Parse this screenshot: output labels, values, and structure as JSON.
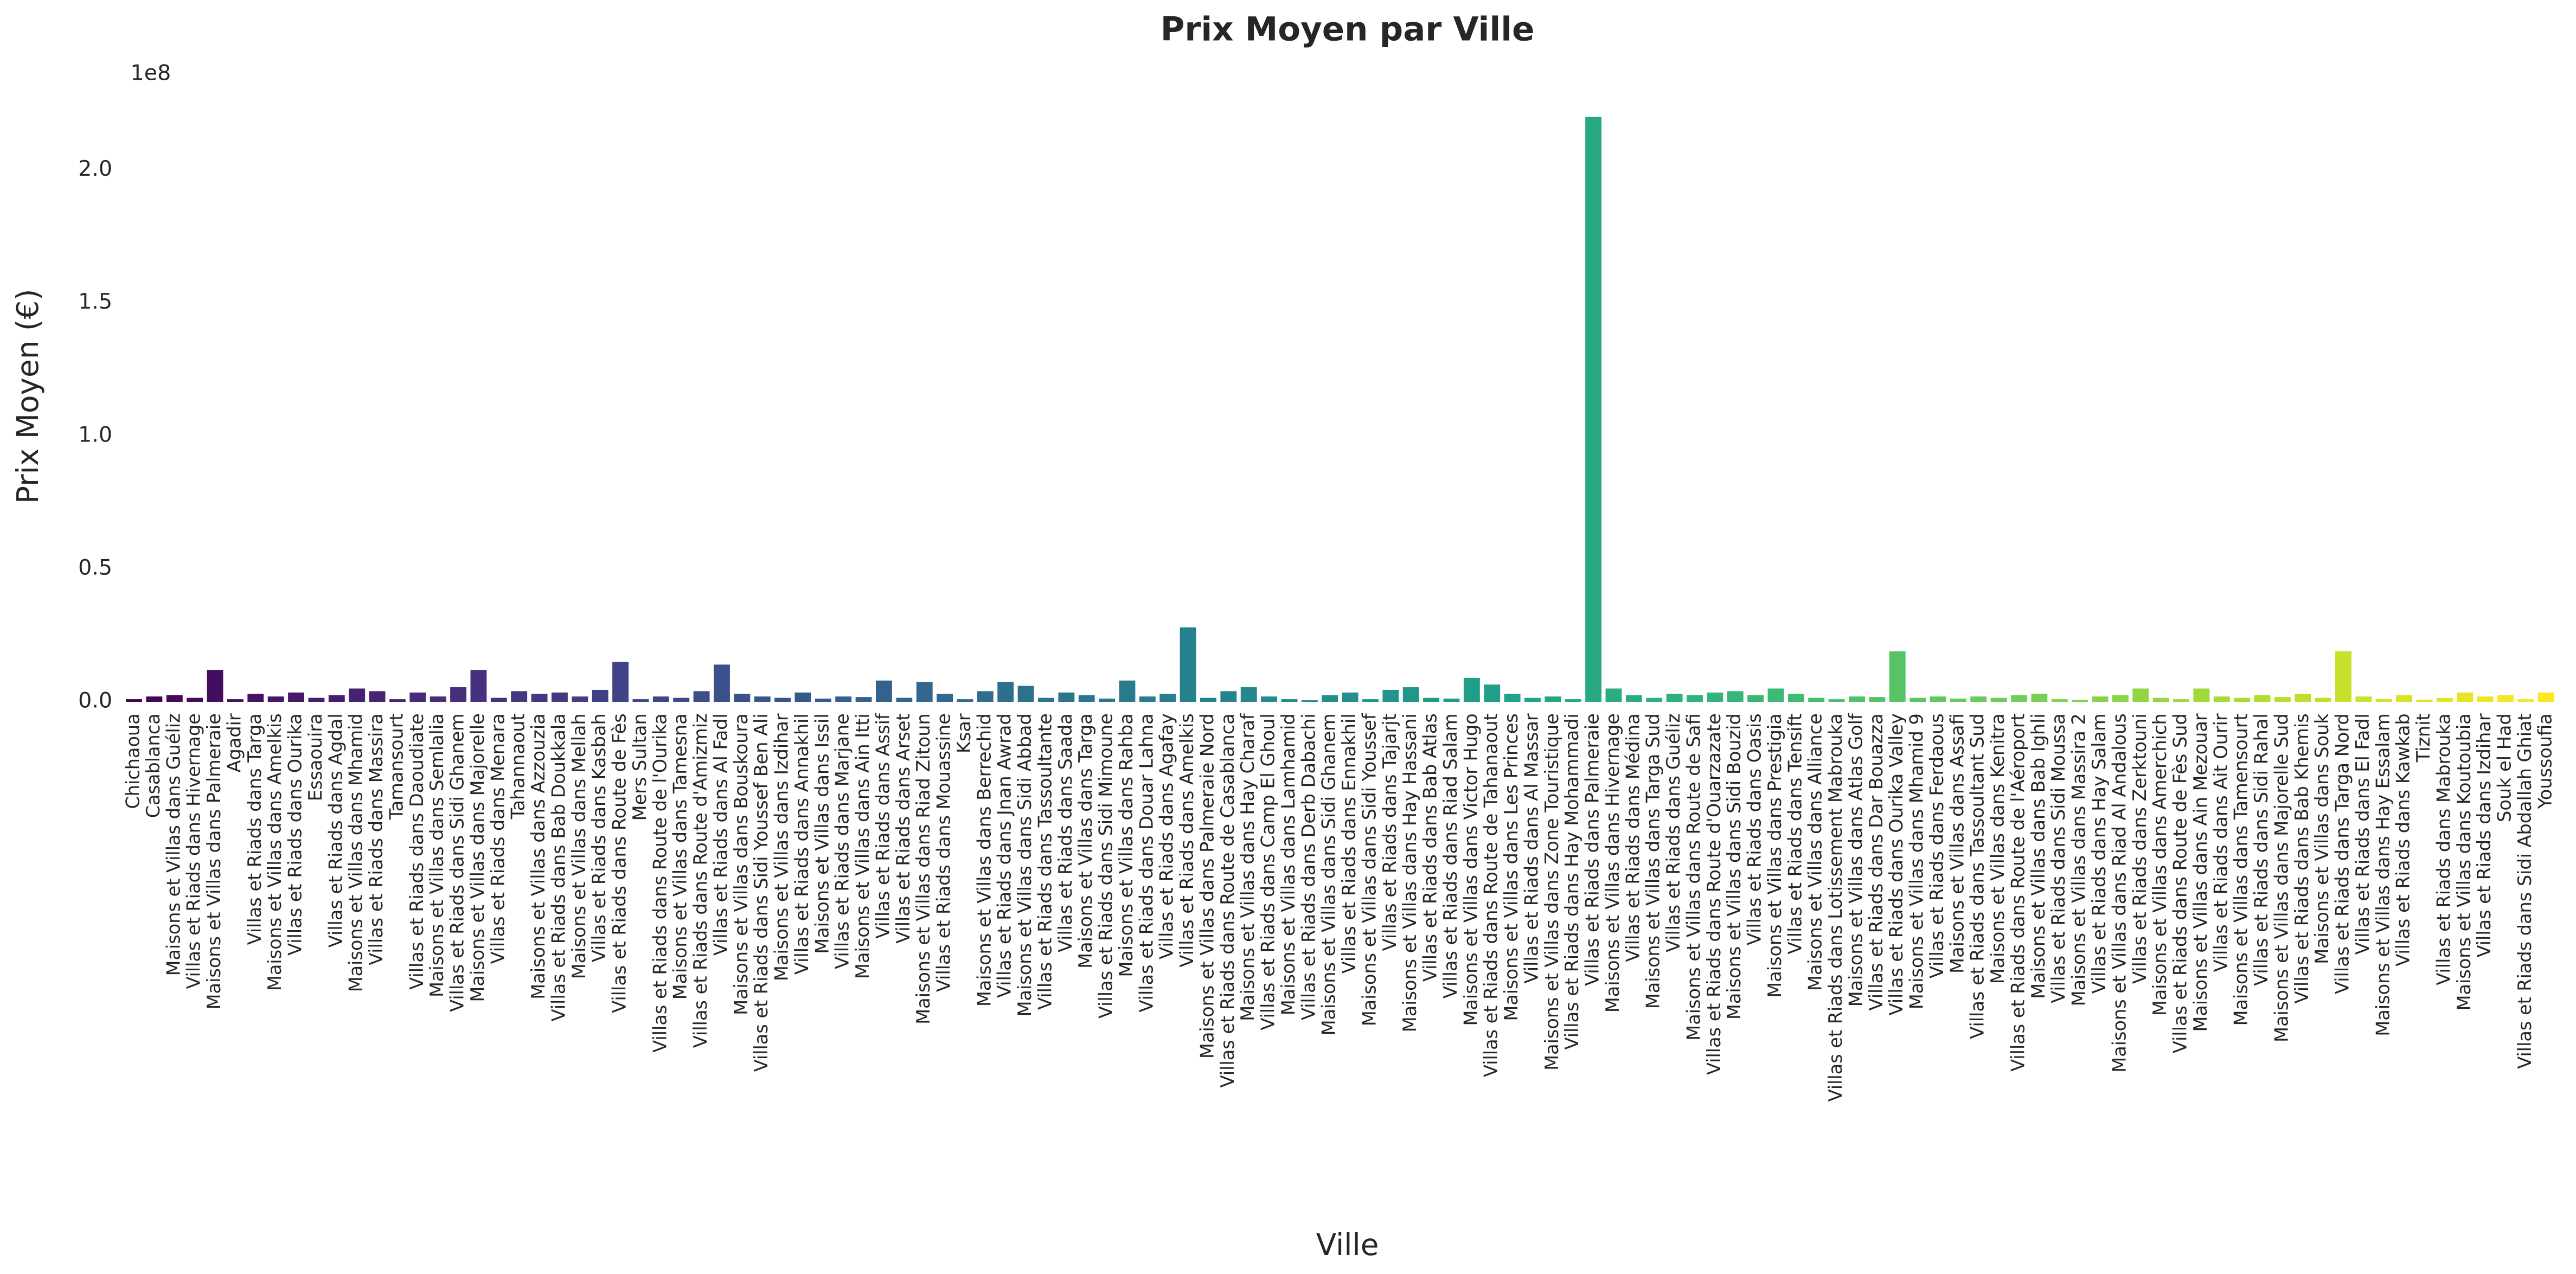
{
  "chart_data": {
    "type": "bar",
    "title": "Prix Moyen par Ville",
    "x_label": "Ville",
    "y_label": "Prix Moyen (€)",
    "y_offset_label": "1e8",
    "palette": "viridis",
    "grid": false,
    "ylim": [
      0,
      240000000
    ],
    "yticks": [
      {
        "value": 0,
        "label": "0.0"
      },
      {
        "value": 50000000,
        "label": "0.5"
      },
      {
        "value": 100000000,
        "label": "1.0"
      },
      {
        "value": 150000000,
        "label": "1.5"
      },
      {
        "value": 200000000,
        "label": "2.0"
      }
    ],
    "categories": [
      "Chichaoua",
      "Casablanca",
      "Maisons et Villas dans Guéliz",
      "Villas et Riads dans Hivernage",
      "Maisons et Villas dans Palmeraie",
      "Agadir",
      "Villas et Riads dans Targa",
      "Maisons et Villas dans Amelkis",
      "Villas et Riads dans Ourika",
      "Essaouira",
      "Villas et Riads dans Agdal",
      "Maisons et Villas dans Mhamid",
      "Villas et Riads dans Massira",
      "Tamansourt",
      "Villas et Riads dans Daoudiate",
      "Maisons et Villas dans Semlalia",
      "Villas et Riads dans Sidi Ghanem",
      "Maisons et Villas dans Majorelle",
      "Villas et Riads dans Menara",
      "Tahannaout",
      "Maisons et Villas dans Azzouzia",
      "Villas et Riads dans Bab Doukkala",
      "Maisons et Villas dans Mellah",
      "Villas et Riads dans Kasbah",
      "Villas et Riads dans Route de Fès",
      "Mers Sultan",
      "Villas et Riads dans Route de l'Ourika",
      "Maisons et Villas dans Tamesna",
      "Villas et Riads dans Route d'Amizmiz",
      "Villas et Riads dans Al Fadl",
      "Maisons et Villas dans Bouskoura",
      "Villas et Riads dans Sidi Youssef Ben Ali",
      "Maisons et Villas dans Izdihar",
      "Villas et Riads dans Annakhil",
      "Maisons et Villas dans Issil",
      "Villas et Riads dans Marjane",
      "Maisons et Villas dans Ain Itti",
      "Villas et Riads dans Assif",
      "Villas et Riads dans Arset",
      "Maisons et Villas dans Riad Zitoun",
      "Villas et Riads dans Mouassine",
      "Ksar",
      "Maisons et Villas dans Berrechid",
      "Villas et Riads dans Jnan Awrad",
      "Maisons et Villas dans Sidi Abbad",
      "Villas et Riads dans Tassoultante",
      "Villas et Riads dans Saada",
      "Maisons et Villas dans Targa",
      "Villas et Riads dans Sidi Mimoune",
      "Maisons et Villas dans Rahba",
      "Villas et Riads dans Douar Lahna",
      "Villas et Riads dans Agafay",
      "Villas et Riads dans Amelkis",
      "Maisons et Villas dans Palmeraie Nord",
      "Villas et Riads dans Route de Casablanca",
      "Maisons et Villas dans Hay Charaf",
      "Villas et Riads dans Camp El Ghoul",
      "Maisons et Villas dans Lamhamid",
      "Villas et Riads dans Derb Dabachi",
      "Maisons et Villas dans Sidi Ghanem",
      "Villas et Riads dans Ennakhil",
      "Maisons et Villas dans Sidi Youssef",
      "Villas et Riads dans Tajarjt",
      "Maisons et Villas dans Hay Hassani",
      "Villas et Riads dans Bab Atlas",
      "Villas et Riads dans Riad Salam",
      "Maisons et Villas dans Victor Hugo",
      "Villas et Riads dans Route de Tahanaout",
      "Maisons et Villas dans Les Princes",
      "Villas et Riads dans Al Massar",
      "Maisons et Villas dans Zone Touristique",
      "Villas et Riads dans Hay Mohammadi",
      "Villas et Riads dans Palmeraie",
      "Maisons et Villas dans Hivernage",
      "Villas et Riads dans Médina",
      "Maisons et Villas dans Targa Sud",
      "Villas et Riads dans Guéliz",
      "Maisons et Villas dans Route de Safi",
      "Villas et Riads dans Route d'Ouarzazate",
      "Maisons et Villas dans Sidi Bouzid",
      "Villas et Riads dans Oasis",
      "Maisons et Villas dans Prestigia",
      "Villas et Riads dans Tensift",
      "Maisons et Villas dans Alliance",
      "Villas et Riads dans Lotissement Mabrouka",
      "Maisons et Villas dans Atlas Golf",
      "Villas et Riads dans Dar Bouazza",
      "Villas et Riads dans Ourika Valley",
      "Maisons et Villas dans Mhamid 9",
      "Villas et Riads dans Ferdaous",
      "Maisons et Villas dans Assafi",
      "Villas et Riads dans Tassoultant Sud",
      "Maisons et Villas dans Kenitra",
      "Villas et Riads dans Route de l'Aéroport",
      "Maisons et Villas dans Bab Ighli",
      "Villas et Riads dans Sidi Moussa",
      "Maisons et Villas dans Massira 2",
      "Villas et Riads dans Hay Salam",
      "Maisons et Villas dans Riad Al Andalous",
      "Villas et Riads dans Zerktouni",
      "Maisons et Villas dans Amerchich",
      "Villas et Riads dans Route de Fès Sud",
      "Maisons et Villas dans Ain Mezouar",
      "Villas et Riads dans Ait Ourir",
      "Maisons et Villas dans Tamensourt",
      "Villas et Riads dans Sidi Rahal",
      "Maisons et Villas dans Majorelle Sud",
      "Villas et Riads dans Bab Khemis",
      "Maisons et Villas dans Souk",
      "Villas et Riads dans Targa Nord",
      "Villas et Riads dans El Fadl",
      "Maisons et Villas dans Hay Essalam",
      "Villas et Riads dans Kawkab",
      "Tiznit",
      "Villas et Riads dans Mabrouka",
      "Maisons et Villas dans Koutoubia",
      "Villas et Riads dans Izdihar",
      "Souk el Had",
      "Villas et Riads dans Sidi Abdallah Ghiat",
      "Youssoufia"
    ],
    "values": [
      1000000,
      2000000,
      2500000,
      1500000,
      12000000,
      1000000,
      3000000,
      2000000,
      3500000,
      1500000,
      2500000,
      5000000,
      4000000,
      1000000,
      3500000,
      2000000,
      5500000,
      12000000,
      1500000,
      4000000,
      3000000,
      3500000,
      2000000,
      4500000,
      15000000,
      1000000,
      2000000,
      1500000,
      4000000,
      14000000,
      3000000,
      2000000,
      1500000,
      3500000,
      1200000,
      2000000,
      1800000,
      8000000,
      1500000,
      7500000,
      3000000,
      1000000,
      4000000,
      7500000,
      6000000,
      1500000,
      3500000,
      2500000,
      1200000,
      8000000,
      2000000,
      3000000,
      28000000,
      1500000,
      4000000,
      5500000,
      2000000,
      1000000,
      600000,
      2500000,
      3500000,
      1000000,
      4500000,
      5500000,
      1500000,
      1200000,
      9000000,
      6500000,
      3000000,
      1500000,
      2000000,
      1000000,
      220000000,
      5000000,
      2500000,
      1500000,
      3000000,
      2500000,
      3500000,
      4000000,
      2500000,
      5000000,
      3000000,
      1500000,
      1000000,
      2000000,
      1800000,
      19000000,
      1500000,
      2000000,
      1200000,
      2000000,
      1500000,
      2500000,
      3000000,
      1000000,
      700000,
      2000000,
      2500000,
      5000000,
      1500000,
      1000000,
      5000000,
      2000000,
      1500000,
      2500000,
      1800000,
      3000000,
      1500000,
      19000000,
      2000000,
      1000000,
      2500000,
      800000,
      1500000,
      3500000,
      2000000,
      2500000,
      1000000,
      3500000
    ]
  }
}
